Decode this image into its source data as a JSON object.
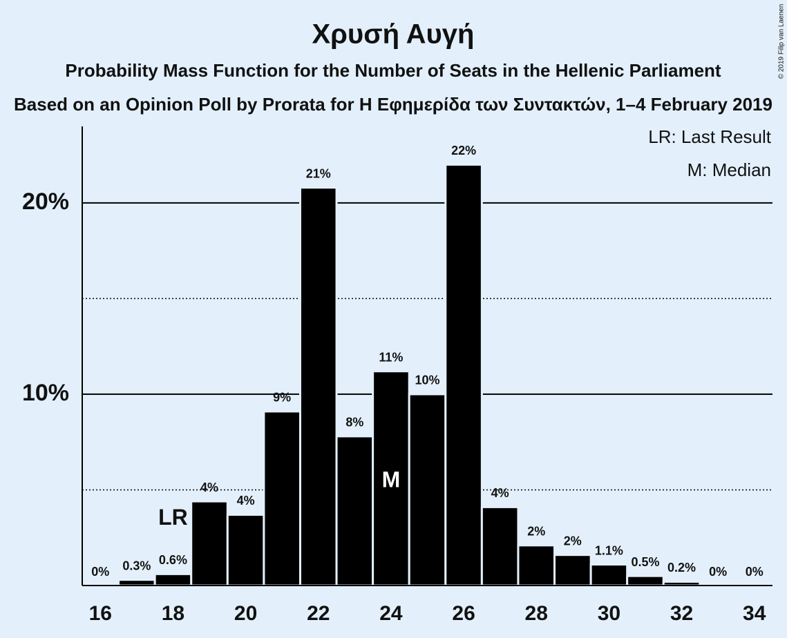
{
  "chart_data": {
    "type": "bar",
    "title": "Χρυσή Αυγή",
    "subtitle": "Probability Mass Function for the Number of Seats in the Hellenic Parliament",
    "subtitle2": "Based on an Opinion Poll by Prorata for Η Εφημερίδα των Συντακτών, 1–4 February 2019",
    "x": [
      16,
      17,
      18,
      19,
      20,
      21,
      22,
      23,
      24,
      25,
      26,
      27,
      28,
      29,
      30,
      31,
      32,
      33,
      34
    ],
    "values": [
      0,
      0.3,
      0.6,
      4.4,
      3.7,
      9.1,
      20.8,
      7.8,
      11.2,
      10.0,
      22.0,
      4.1,
      2.1,
      1.6,
      1.1,
      0.5,
      0.2,
      0,
      0
    ],
    "value_labels": [
      "0%",
      "0.3%",
      "0.6%",
      "4%",
      "4%",
      "9%",
      "21%",
      "8%",
      "11%",
      "10%",
      "22%",
      "4%",
      "2%",
      "2%",
      "1.1%",
      "0.5%",
      "0.2%",
      "0%",
      "0%"
    ],
    "color": "#000000",
    "xlim": [
      15.5,
      34.5
    ],
    "xticks": [
      16,
      18,
      20,
      22,
      24,
      26,
      28,
      30,
      32,
      34
    ],
    "ylim": [
      0,
      24
    ],
    "yticks": [
      {
        "value": 10,
        "label": "10%"
      },
      {
        "value": 20,
        "label": "20%"
      }
    ],
    "minor_gridlines": [
      5,
      15
    ],
    "grid": true,
    "annotations": [
      {
        "text": "LR",
        "x": 18
      },
      {
        "text": "M",
        "x": 24
      }
    ],
    "legend": [
      "LR: Last Result",
      "M: Median"
    ],
    "copyright": "© 2019 Filip van Laenen"
  }
}
